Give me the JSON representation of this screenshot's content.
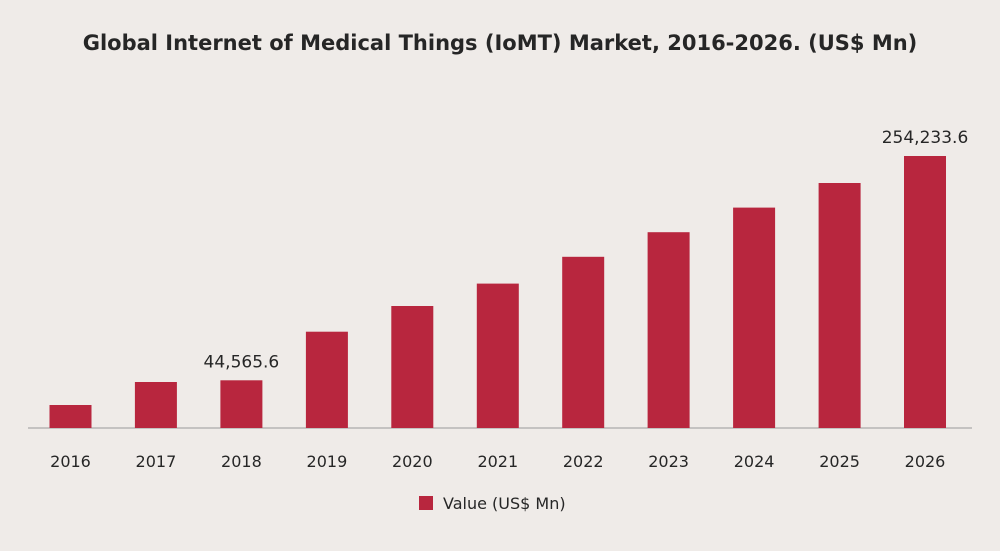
{
  "chart_data": {
    "type": "bar",
    "title": "Global Internet of Medical Things (IoMT) Market, 2016-2026. (US$ Mn)",
    "xlabel": "",
    "ylabel": "",
    "categories": [
      "2016",
      "2017",
      "2018",
      "2019",
      "2020",
      "2021",
      "2022",
      "2023",
      "2024",
      "2025",
      "2026"
    ],
    "series": [
      {
        "name": "Value (US$ Mn)",
        "color": "#b8263e",
        "values": [
          21500,
          43000,
          44565.6,
          90000,
          114000,
          135000,
          160000,
          183000,
          206000,
          229000,
          254233.6
        ]
      }
    ],
    "data_labels": [
      {
        "index": 2,
        "text": "44,565.6"
      },
      {
        "index": 10,
        "text": "254,233.6"
      }
    ],
    "ylim": [
      0,
      254233.6
    ],
    "grid": false,
    "legend_position": "bottom-center"
  }
}
